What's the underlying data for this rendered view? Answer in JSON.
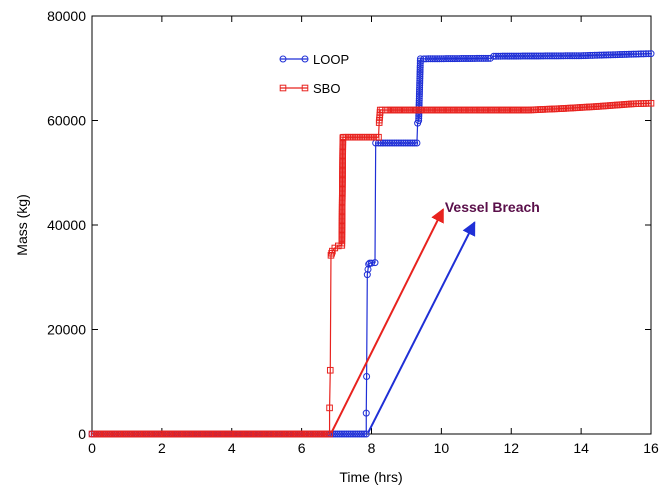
{
  "chart_data": {
    "type": "line",
    "title": "",
    "xlabel": "Time (hrs)",
    "ylabel": "Mass (kg)",
    "xlim": [
      0,
      16
    ],
    "ylim": [
      0,
      80000
    ],
    "xticks": [
      0,
      2,
      4,
      6,
      8,
      10,
      12,
      14,
      16
    ],
    "yticks": [
      0,
      20000,
      40000,
      60000,
      80000
    ],
    "legend_placement": "top-center",
    "grid": false,
    "series": [
      {
        "name": "LOOP",
        "color": "#1f2fd6",
        "marker": "circle",
        "x": [
          0,
          7.85,
          7.85,
          7.86,
          7.88,
          7.9,
          7.92,
          7.95,
          8.0,
          8.1,
          8.12,
          8.2,
          9.3,
          9.32,
          9.35,
          9.4,
          9.5,
          11.4,
          11.5,
          14.0,
          15.5,
          16.0
        ],
        "y": [
          0,
          0,
          4000,
          11000,
          30500,
          31500,
          32500,
          32700,
          32700,
          32800,
          55700,
          55700,
          55700,
          59500,
          60000,
          71800,
          71800,
          71900,
          72300,
          72400,
          72700,
          72800
        ]
      },
      {
        "name": "SBO",
        "color": "#e8231f",
        "marker": "square",
        "x": [
          0,
          6.8,
          6.8,
          6.82,
          6.84,
          6.88,
          6.95,
          7.05,
          7.15,
          7.18,
          7.2,
          8.2,
          8.22,
          8.25,
          8.3,
          8.4,
          12.5,
          13.5,
          14.5,
          15.5,
          16.0
        ],
        "y": [
          0,
          0,
          5000,
          12200,
          34200,
          35000,
          35600,
          36000,
          36100,
          56700,
          56800,
          56800,
          59600,
          62000,
          62000,
          62000,
          62000,
          62300,
          62700,
          63200,
          63300
        ]
      }
    ],
    "annotations": [
      {
        "text": "Vessel Breach",
        "color": "#5a0f4a",
        "label_x": 10.1,
        "label_y": 42500,
        "arrows": [
          {
            "color": "#e8231f",
            "x0": 6.85,
            "y0": 200,
            "x1": 10.05,
            "y1": 43000
          },
          {
            "color": "#1f2fd6",
            "x0": 7.9,
            "y0": 200,
            "x1": 10.95,
            "y1": 40500
          }
        ]
      }
    ]
  }
}
